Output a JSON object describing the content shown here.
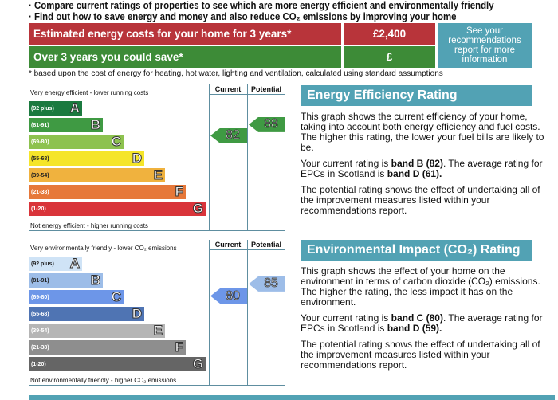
{
  "intro": {
    "bullets": [
      "Compare current ratings of properties to see which are more energy efficient and environmentally friendly",
      "Find out how to save energy and money and also reduce CO₂ emissions by improving your home"
    ]
  },
  "costs": {
    "row1_label": "Estimated energy costs for your home for 3 years*",
    "row1_value": "£2,400",
    "row2_label": "Over 3 years you could save*",
    "row2_value": "£",
    "side_note": "See your recommendations report for more information",
    "footnote": "* based upon the cost of energy for heating, hot water, lighting and ventilation, calculated using standard assumptions",
    "colors": {
      "red": "#b8343a",
      "green": "#3d8b37",
      "teal": "#52a2b4"
    }
  },
  "energy_chart": {
    "top_caption": "Very energy efficient - lower running costs",
    "bottom_caption": "Not energy efficient - higher running costs",
    "col_current": "Current",
    "col_potential": "Potential",
    "current": 82,
    "potential": 88,
    "current_color": "#3f9a43",
    "potential_color": "#3f9a43",
    "bands": [
      {
        "range": "(92 plus)",
        "letter": "A",
        "color": "#1b7a3f"
      },
      {
        "range": "(81-91)",
        "letter": "B",
        "color": "#3f9a43"
      },
      {
        "range": "(69-80)",
        "letter": "C",
        "color": "#8dc24f"
      },
      {
        "range": "(55-68)",
        "letter": "D",
        "color": "#f5e52a"
      },
      {
        "range": "(39-54)",
        "letter": "E",
        "color": "#f0b23e"
      },
      {
        "range": "(21-38)",
        "letter": "F",
        "color": "#e6783a"
      },
      {
        "range": "(1-20)",
        "letter": "G",
        "color": "#d9343a"
      }
    ]
  },
  "env_chart": {
    "top_caption": "Very environmentally friendly - lower CO₂ emissions",
    "bottom_caption": "Not environmentally friendly - higher CO₂ emissions",
    "col_current": "Current",
    "col_potential": "Potential",
    "current": 80,
    "potential": 85,
    "current_color": "#6d96e8",
    "potential_color": "#9dbde8",
    "bands": [
      {
        "range": "(92 plus)",
        "letter": "A",
        "color": "#cfe3f6"
      },
      {
        "range": "(81-91)",
        "letter": "B",
        "color": "#9dbde8"
      },
      {
        "range": "(69-80)",
        "letter": "C",
        "color": "#6d96e8"
      },
      {
        "range": "(55-68)",
        "letter": "D",
        "color": "#4f74b3"
      },
      {
        "range": "(39-54)",
        "letter": "E",
        "color": "#b5b5b5"
      },
      {
        "range": "(21-38)",
        "letter": "F",
        "color": "#8e8e8e"
      },
      {
        "range": "(1-20)",
        "letter": "G",
        "color": "#656565"
      }
    ]
  },
  "energy_panel": {
    "title": "Energy Efficiency Rating",
    "p1": "This graph shows the current efficiency of your home, taking into account both energy efficiency and fuel costs. The higher this rating, the lower your fuel bills are likely to be.",
    "p2_a": "Your current rating is ",
    "p2_b": "band B (82)",
    "p2_c": ". The average rating for EPCs in Scotland is ",
    "p2_d": "band D (61).",
    "p3": "The potential rating shows the effect of undertaking all of the improvement measures listed within your recommendations report."
  },
  "env_panel": {
    "title": "Environmental Impact (CO₂) Rating",
    "p1": "This graph shows the effect of your home on the environment in terms of carbon dioxide (CO₂) emissions. The higher the rating, the less impact it has on the environment.",
    "p2_a": "Your current rating is ",
    "p2_b": "band C (80)",
    "p2_c": ". The average rating for EPCs in Scotland is ",
    "p2_d": "band D (59).",
    "p3": "The potential rating shows the effect of undertaking all of the improvement measures listed within your recommendations report."
  }
}
